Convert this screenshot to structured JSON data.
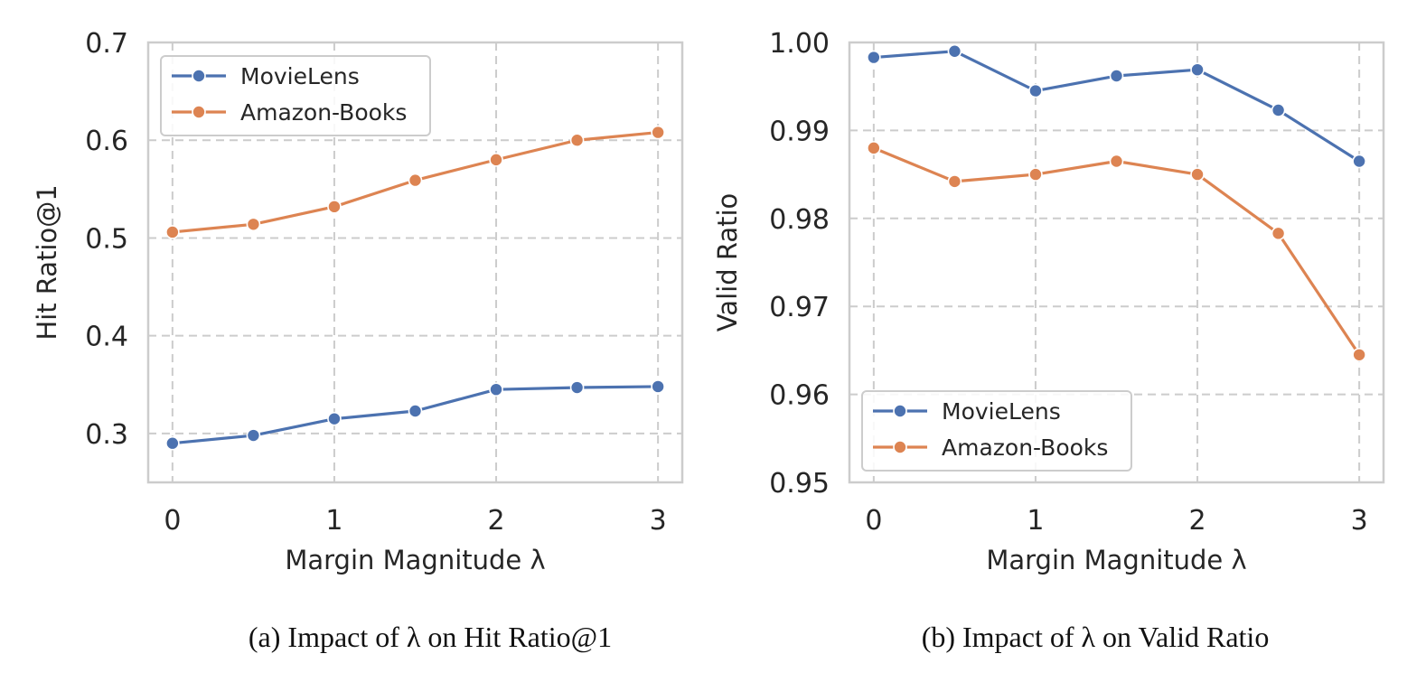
{
  "chart_data": [
    {
      "type": "line",
      "panel": "a",
      "x": [
        0,
        0.5,
        1,
        1.5,
        2,
        2.5,
        3
      ],
      "xticks": [
        0,
        1,
        2,
        3
      ],
      "xtick_labels": [
        "0",
        "1",
        "2",
        "3"
      ],
      "xlim": [
        -0.15,
        3.15
      ],
      "yticks": [
        0.3,
        0.4,
        0.5,
        0.6,
        0.7
      ],
      "ytick_labels": [
        "0.3",
        "0.4",
        "0.5",
        "0.6",
        "0.7"
      ],
      "ylim": [
        0.25,
        0.7
      ],
      "xlabel": "Margin Magnitude λ",
      "ylabel": "Hit Ratio@1",
      "grid": true,
      "legend_position": "top-left",
      "caption": "(a) Impact of λ on Hit Ratio@1",
      "series": [
        {
          "name": "MovieLens",
          "color": "#4c72b0",
          "values": [
            0.29,
            0.298,
            0.315,
            0.323,
            0.345,
            0.347,
            0.348
          ]
        },
        {
          "name": "Amazon-Books",
          "color": "#dd8452",
          "values": [
            0.506,
            0.514,
            0.532,
            0.559,
            0.58,
            0.6,
            0.608
          ]
        }
      ]
    },
    {
      "type": "line",
      "panel": "b",
      "x": [
        0,
        0.5,
        1,
        1.5,
        2,
        2.5,
        3
      ],
      "xticks": [
        0,
        1,
        2,
        3
      ],
      "xtick_labels": [
        "0",
        "1",
        "2",
        "3"
      ],
      "xlim": [
        -0.15,
        3.15
      ],
      "yticks": [
        0.95,
        0.96,
        0.97,
        0.98,
        0.99,
        1.0
      ],
      "ytick_labels": [
        "0.95",
        "0.96",
        "0.97",
        "0.98",
        "0.99",
        "1.00"
      ],
      "ylim": [
        0.95,
        1.0
      ],
      "xlabel": "Margin Magnitude λ",
      "ylabel": "Valid Ratio",
      "grid": true,
      "legend_position": "bottom-left",
      "caption": "(b) Impact of λ on Valid Ratio",
      "series": [
        {
          "name": "MovieLens",
          "color": "#4c72b0",
          "values": [
            0.9983,
            0.999,
            0.9945,
            0.9962,
            0.9969,
            0.9923,
            0.9865
          ]
        },
        {
          "name": "Amazon-Books",
          "color": "#dd8452",
          "values": [
            0.988,
            0.9842,
            0.985,
            0.9865,
            0.985,
            0.9783,
            0.9645
          ]
        }
      ]
    }
  ]
}
